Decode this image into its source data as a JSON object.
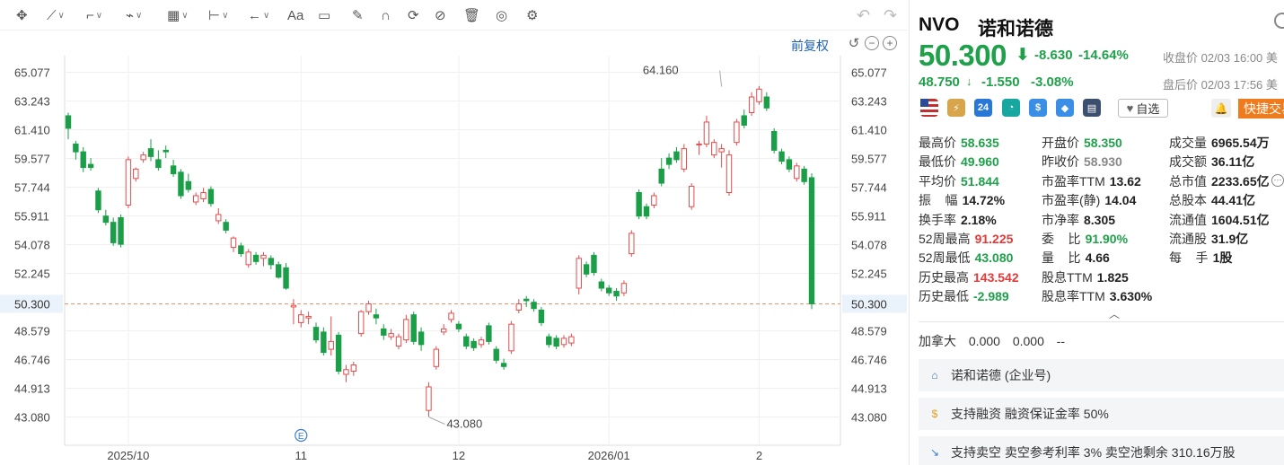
{
  "toolbar": {
    "tools": [
      {
        "name": "crosshair-tool",
        "glyph": "✥",
        "chev": false
      },
      {
        "name": "line-tool",
        "glyph": "⟋",
        "chev": true
      },
      {
        "name": "polyline-tool",
        "glyph": "⌐",
        "chev": true
      },
      {
        "name": "wave-tool",
        "glyph": "⌁",
        "chev": true
      },
      {
        "name": "fib-tool",
        "glyph": "▦",
        "chev": true
      },
      {
        "name": "measure-tool",
        "glyph": "⊢",
        "chev": true
      },
      {
        "name": "arrow-tool",
        "glyph": "←",
        "chev": true
      },
      {
        "name": "text-tool",
        "glyph": "Aa",
        "chev": false
      },
      {
        "name": "comment-tool",
        "glyph": "▭",
        "chev": false
      },
      {
        "name": "pencil-tool",
        "glyph": "✎",
        "chev": false
      },
      {
        "name": "magnet-tool",
        "glyph": "∩",
        "chev": false
      },
      {
        "name": "sync-tool",
        "glyph": "⟳",
        "chev": false
      },
      {
        "name": "hide-tool",
        "glyph": "⊘",
        "chev": false
      },
      {
        "name": "delete-tool",
        "glyph": "🗑",
        "chev": false
      },
      {
        "name": "compare-tool",
        "glyph": "◎",
        "chev": false
      },
      {
        "name": "settings-tool",
        "glyph": "⚙",
        "chev": false
      }
    ],
    "undo_glyph": "↶",
    "redo_glyph": "↷"
  },
  "chart_controls": {
    "adjust_label": "前复权",
    "reset_glyph": "↺",
    "zoom_out_glyph": "−",
    "zoom_in_glyph": "+"
  },
  "chart_data": {
    "type": "candlestick",
    "title": "",
    "xlabel": "",
    "ylabel": "",
    "ylim": [
      41.8,
      66.3
    ],
    "y_ticks": [
      "65.077",
      "63.243",
      "61.410",
      "59.577",
      "57.744",
      "55.911",
      "54.078",
      "52.245",
      "50.300",
      "48.579",
      "46.746",
      "44.913",
      "43.080"
    ],
    "x_ticks": [
      {
        "label": "2025/10",
        "index": 8
      },
      {
        "label": "11",
        "index": 31
      },
      {
        "label": "12",
        "index": 52
      },
      {
        "label": "2026/01",
        "index": 72
      },
      {
        "label": "2",
        "index": 92
      }
    ],
    "current_price": 50.3,
    "current_price_label": "50.300",
    "annotations": [
      {
        "label": "64.160",
        "index": 87,
        "value": 64.16
      },
      {
        "label": "43.080",
        "index": 48,
        "value": 43.08
      }
    ],
    "event_marker": {
      "label": "E",
      "index": 31
    },
    "candles": [
      [
        62.3,
        61.5,
        62.5,
        60.8
      ],
      [
        60.5,
        60.0,
        60.7,
        59.5
      ],
      [
        60.0,
        59.0,
        60.3,
        58.7
      ],
      [
        59.2,
        59.0,
        59.6,
        58.8
      ],
      [
        57.5,
        56.3,
        57.7,
        56.1
      ],
      [
        55.9,
        55.5,
        56.3,
        55.3
      ],
      [
        55.5,
        54.2,
        55.8,
        54.0
      ],
      [
        55.8,
        54.1,
        56.0,
        53.9
      ],
      [
        56.6,
        59.5,
        59.7,
        56.4
      ],
      [
        58.3,
        58.9,
        59.0,
        58.1
      ],
      [
        59.5,
        59.8,
        60.0,
        59.3
      ],
      [
        60.2,
        59.7,
        60.8,
        59.4
      ],
      [
        59.5,
        59.0,
        60.1,
        58.8
      ],
      [
        60.1,
        60.0,
        60.4,
        59.6
      ],
      [
        59.1,
        58.6,
        59.5,
        58.4
      ],
      [
        58.7,
        57.2,
        58.9,
        57.0
      ],
      [
        58.1,
        57.6,
        58.6,
        57.4
      ],
      [
        56.8,
        57.2,
        57.4,
        56.6
      ],
      [
        57.0,
        57.4,
        57.7,
        56.8
      ],
      [
        57.6,
        56.7,
        57.8,
        56.5
      ],
      [
        55.6,
        56.0,
        56.4,
        55.4
      ],
      [
        55.5,
        55.0,
        55.7,
        54.8
      ],
      [
        53.9,
        54.5,
        54.6,
        53.6
      ],
      [
        54.0,
        53.5,
        54.2,
        53.3
      ],
      [
        52.8,
        53.6,
        53.8,
        52.6
      ],
      [
        53.4,
        53.0,
        53.6,
        52.8
      ],
      [
        53.2,
        53.4,
        53.6,
        52.7
      ],
      [
        53.2,
        52.8,
        53.4,
        52.5
      ],
      [
        52.8,
        52.0,
        53.0,
        51.9
      ],
      [
        52.6,
        51.3,
        52.9,
        51.2
      ],
      [
        50.1,
        50.2,
        50.6,
        49.0
      ],
      [
        49.1,
        49.6,
        49.9,
        48.8
      ],
      [
        49.4,
        49.5,
        49.8,
        49.0
      ],
      [
        48.8,
        48.0,
        49.1,
        47.8
      ],
      [
        48.5,
        47.2,
        48.8,
        47.0
      ],
      [
        47.4,
        47.9,
        49.5,
        47.0
      ],
      [
        48.3,
        46.0,
        48.5,
        45.8
      ],
      [
        45.8,
        46.1,
        46.4,
        45.3
      ],
      [
        46.0,
        46.4,
        46.6,
        45.7
      ],
      [
        48.4,
        49.8,
        49.9,
        48.2
      ],
      [
        49.8,
        50.3,
        50.5,
        49.6
      ],
      [
        49.6,
        49.4,
        50.0,
        49.0
      ],
      [
        48.7,
        48.3,
        49.0,
        48.0
      ],
      [
        48.2,
        48.4,
        48.7,
        48.0
      ],
      [
        47.6,
        48.2,
        48.4,
        47.4
      ],
      [
        48.0,
        49.3,
        49.6,
        47.8
      ],
      [
        49.6,
        47.9,
        49.8,
        47.7
      ],
      [
        48.5,
        47.7,
        48.8,
        47.3
      ],
      [
        43.5,
        45.0,
        45.3,
        43.1
      ],
      [
        46.3,
        47.4,
        47.6,
        46.1
      ],
      [
        48.5,
        48.7,
        49.0,
        48.3
      ],
      [
        49.3,
        49.7,
        49.9,
        49.1
      ],
      [
        49.0,
        48.7,
        49.2,
        48.5
      ],
      [
        48.2,
        47.6,
        48.4,
        47.4
      ],
      [
        47.9,
        47.5,
        48.1,
        47.3
      ],
      [
        47.7,
        48.0,
        48.2,
        47.5
      ],
      [
        48.9,
        47.9,
        49.1,
        47.7
      ],
      [
        47.4,
        46.7,
        47.6,
        46.5
      ],
      [
        46.5,
        46.3,
        46.8,
        46.1
      ],
      [
        47.3,
        49.0,
        49.2,
        47.1
      ],
      [
        49.9,
        50.3,
        50.6,
        49.7
      ],
      [
        50.6,
        50.5,
        50.8,
        50.1
      ],
      [
        50.4,
        50.0,
        50.6,
        49.8
      ],
      [
        49.9,
        49.1,
        50.1,
        48.9
      ],
      [
        48.2,
        47.7,
        48.4,
        47.5
      ],
      [
        48.1,
        47.6,
        48.3,
        47.4
      ],
      [
        47.7,
        48.1,
        48.3,
        47.5
      ],
      [
        47.8,
        48.2,
        48.4,
        47.6
      ],
      [
        51.3,
        53.2,
        53.4,
        50.9
      ],
      [
        52.8,
        52.2,
        53.0,
        52.0
      ],
      [
        53.4,
        52.3,
        53.6,
        52.1
      ],
      [
        51.7,
        51.3,
        51.9,
        51.1
      ],
      [
        51.3,
        51.0,
        51.5,
        50.8
      ],
      [
        51.1,
        50.8,
        51.3,
        50.5
      ],
      [
        51.0,
        51.6,
        51.8,
        50.8
      ],
      [
        53.5,
        54.8,
        55.0,
        53.3
      ],
      [
        57.4,
        55.9,
        57.6,
        55.7
      ],
      [
        56.5,
        55.9,
        56.7,
        55.7
      ],
      [
        56.6,
        57.2,
        57.4,
        56.4
      ],
      [
        58.9,
        58.0,
        59.6,
        57.8
      ],
      [
        59.6,
        59.2,
        59.9,
        58.9
      ],
      [
        60.0,
        59.5,
        60.3,
        59.3
      ],
      [
        58.9,
        60.2,
        60.5,
        58.7
      ],
      [
        56.5,
        57.8,
        58.0,
        56.3
      ],
      [
        60.5,
        60.5,
        60.7,
        59.8
      ],
      [
        60.5,
        61.9,
        62.3,
        60.3
      ],
      [
        59.8,
        60.6,
        60.8,
        59.6
      ],
      [
        60.0,
        60.2,
        60.5,
        59.0
      ],
      [
        57.4,
        59.8,
        60.1,
        57.2
      ],
      [
        60.6,
        61.9,
        62.1,
        60.4
      ],
      [
        62.3,
        61.7,
        62.7,
        61.5
      ],
      [
        62.5,
        63.5,
        63.8,
        62.3
      ],
      [
        63.2,
        64.0,
        64.2,
        63.0
      ],
      [
        63.5,
        62.8,
        63.8,
        62.6
      ],
      [
        61.3,
        60.1,
        61.5,
        59.9
      ],
      [
        60.0,
        59.4,
        60.2,
        59.2
      ],
      [
        59.5,
        58.9,
        59.7,
        58.7
      ],
      [
        58.3,
        59.1,
        59.3,
        58.1
      ],
      [
        58.9,
        58.1,
        59.1,
        57.9
      ],
      [
        58.35,
        50.3,
        58.635,
        49.96
      ]
    ]
  },
  "quote": {
    "ticker": "NVO",
    "name": "诺和诺德",
    "price": "50.300",
    "change": "-8.630",
    "change_pct": "-14.64%",
    "close_time": "收盘价 02/03 16:00 美",
    "ah_price": "48.750",
    "ah_change": "-1.550",
    "ah_change_pct": "-3.08%",
    "ah_time": "盘后价 02/03 17:56 美",
    "watch_label": "自选",
    "trade_label": "快捷交易",
    "badges": [
      {
        "name": "us-flag-badge",
        "text": "",
        "color": "#2a4a9a"
      },
      {
        "name": "lightning-badge",
        "text": "⚡",
        "color": "#d9a54a"
      },
      {
        "name": "24h-badge",
        "text": "24",
        "color": "#2a78d6"
      },
      {
        "name": "chart-badge",
        "text": "◔",
        "color": "#17a7a0"
      },
      {
        "name": "dollar-badge",
        "text": "$",
        "color": "#3a8ee6"
      },
      {
        "name": "tag-badge",
        "text": "◆",
        "color": "#3a8ee6"
      },
      {
        "name": "note-badge",
        "text": "▤",
        "color": "#3d4f6e"
      }
    ]
  },
  "stats": [
    [
      {
        "label": "最高价",
        "value": "58.635",
        "color": "green"
      },
      {
        "label": "开盘价",
        "value": "58.350",
        "color": "green"
      },
      {
        "label": "成交量",
        "value": "6965.54万",
        "color": "dark"
      }
    ],
    [
      {
        "label": "最低价",
        "value": "49.960",
        "color": "green"
      },
      {
        "label": "昨收价",
        "value": "58.930",
        "color": "gray"
      },
      {
        "label": "成交额",
        "value": "36.11亿",
        "color": "dark"
      }
    ],
    [
      {
        "label": "平均价",
        "value": "51.844",
        "color": "green"
      },
      {
        "label": "市盈率TTM",
        "value": "13.62",
        "color": "dark"
      },
      {
        "label": "总市值",
        "value": "2233.65亿",
        "color": "dark"
      }
    ],
    [
      {
        "label": "振    幅",
        "value": "14.72%",
        "color": "dark"
      },
      {
        "label": "市盈率(静)",
        "value": "14.04",
        "color": "dark"
      },
      {
        "label": "总股本",
        "value": "44.41亿",
        "color": "dark"
      }
    ],
    [
      {
        "label": "换手率",
        "value": "2.18%",
        "color": "dark"
      },
      {
        "label": "市净率",
        "value": "8.305",
        "color": "dark"
      },
      {
        "label": "流通值",
        "value": "1604.51亿",
        "color": "dark"
      }
    ],
    [
      {
        "label": "52周最高",
        "value": "91.225",
        "color": "red"
      },
      {
        "label": "委    比",
        "value": "91.90%",
        "color": "green"
      },
      {
        "label": "流通股",
        "value": "31.9亿",
        "color": "dark"
      }
    ],
    [
      {
        "label": "52周最低",
        "value": "43.080",
        "color": "green"
      },
      {
        "label": "量    比",
        "value": "4.66",
        "color": "dark"
      },
      {
        "label": "每    手",
        "value": "1股",
        "color": "dark"
      }
    ],
    [
      {
        "label": "历史最高",
        "value": "143.542",
        "color": "red"
      },
      {
        "label": "股息TTM",
        "value": "1.825",
        "color": "dark"
      }
    ],
    [
      {
        "label": "历史最低",
        "value": "-2.989",
        "color": "green"
      },
      {
        "label": "股息率TTM",
        "value": "3.630%",
        "color": "dark"
      }
    ]
  ],
  "canada": {
    "label": "加拿大",
    "v1": "0.000",
    "v2": "0.000",
    "v3": "--"
  },
  "links": [
    {
      "icon": "building-icon",
      "glyph": "⌂",
      "text": "诺和诺德 (企业号)",
      "arrow": true
    },
    {
      "icon": "coin-icon",
      "glyph": "$",
      "text": "支持融资 融资保证金率 50%",
      "arrow": false
    },
    {
      "icon": "short-icon",
      "glyph": "↘",
      "text": "支持卖空 卖空参考利率 3% 卖空池剩余 310.16万股",
      "arrow": false
    }
  ]
}
